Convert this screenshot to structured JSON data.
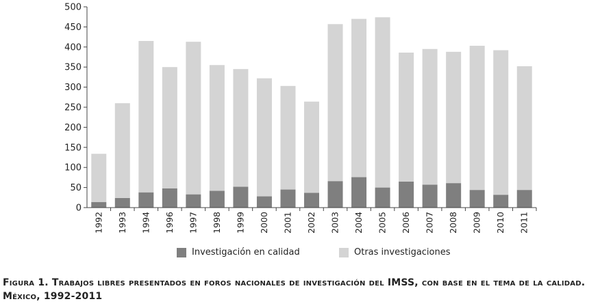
{
  "chart_data": {
    "type": "bar",
    "stacked": true,
    "categories": [
      "1992",
      "1993",
      "1994",
      "1996",
      "1997",
      "1998",
      "1999",
      "2000",
      "2001",
      "2002",
      "2003",
      "2004",
      "2005",
      "2006",
      "2007",
      "2008",
      "2009",
      "2010",
      "2011"
    ],
    "series": [
      {
        "name": "Investigación en calidad",
        "color": "#7f7f7f",
        "values": [
          14,
          24,
          38,
          48,
          33,
          42,
          52,
          28,
          45,
          37,
          66,
          76,
          50,
          65,
          57,
          61,
          44,
          32,
          44
        ]
      },
      {
        "name": "Otras investigaciones",
        "color": "#d4d4d4",
        "values": [
          120,
          236,
          377,
          302,
          380,
          313,
          293,
          294,
          258,
          227,
          391,
          394,
          424,
          321,
          338,
          327,
          359,
          360,
          308
        ]
      }
    ],
    "ylim": [
      0,
      500
    ],
    "yticks": [
      0,
      50,
      100,
      150,
      200,
      250,
      300,
      350,
      400,
      450,
      500
    ],
    "grid": false,
    "legend_position": "bottom"
  },
  "caption": "Figura 1. Trabajos libres presentados en foros nacionales de investigación del IMSS, con base en el tema de la calidad. México, 1992-2011"
}
